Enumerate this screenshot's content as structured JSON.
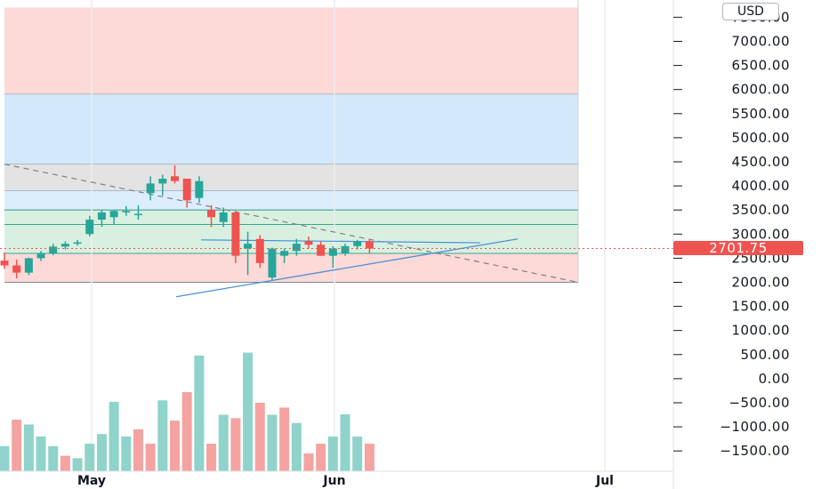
{
  "currency_label": "USD",
  "last_price_label": "2701.75",
  "colors": {
    "up": "#26a69a",
    "down": "#ef5350",
    "vol_up": "#8fd3cb",
    "vol_down": "#f4a3a1",
    "zone_red": "#fdd9d7",
    "zone_blue": "#d2e8fb",
    "zone_lightblue": "#dcedfb",
    "zone_gray": "#e3e3e3",
    "zone_green": "#d9f0e0",
    "trend_line": "#4a90d9",
    "dashed_line": "#808080"
  },
  "chart_data": {
    "type": "candlestick",
    "y_axis": {
      "ticks": [
        7500,
        7000,
        6500,
        6000,
        5500,
        5000,
        4500,
        4000,
        3500,
        3000,
        2500,
        2000,
        1500,
        1000,
        500,
        0,
        -500,
        -1000,
        -1500
      ],
      "tick_labels": [
        "7500.00",
        "7000.00",
        "6500.00",
        "6000.00",
        "5500.00",
        "5000.00",
        "4500.00",
        "4000.00",
        "3500.00",
        "3000.00",
        "2500.00",
        "2000.00",
        "1500.00",
        "1000.00",
        "500.00",
        "0.00",
        "−500.00",
        "−1000.00",
        "−1500.00"
      ],
      "range": [
        -2000,
        7700
      ],
      "unit": "USD"
    },
    "x_axis": {
      "labels": [
        "May",
        "Jun",
        "Jul"
      ]
    },
    "last_price": 2701.75,
    "zones": [
      {
        "from": 5900,
        "to": 7700,
        "color": "zone_red"
      },
      {
        "from": 4450,
        "to": 5900,
        "color": "zone_blue"
      },
      {
        "from": 3900,
        "to": 4450,
        "color": "zone_gray"
      },
      {
        "from": 3500,
        "to": 3900,
        "color": "zone_lightblue"
      },
      {
        "from": 2600,
        "to": 3500,
        "color": "zone_green"
      },
      {
        "from": 2000,
        "to": 2600,
        "color": "zone_red"
      }
    ],
    "candles": [
      {
        "o": 2450,
        "h": 2620,
        "l": 2280,
        "c": 2350
      },
      {
        "o": 2350,
        "h": 2470,
        "l": 2080,
        "c": 2200
      },
      {
        "o": 2200,
        "h": 2510,
        "l": 2150,
        "c": 2500
      },
      {
        "o": 2500,
        "h": 2650,
        "l": 2440,
        "c": 2600
      },
      {
        "o": 2600,
        "h": 2800,
        "l": 2560,
        "c": 2740
      },
      {
        "o": 2740,
        "h": 2850,
        "l": 2680,
        "c": 2800
      },
      {
        "o": 2800,
        "h": 2880,
        "l": 2760,
        "c": 2830
      },
      {
        "o": 3000,
        "h": 3380,
        "l": 2950,
        "c": 3300
      },
      {
        "o": 3300,
        "h": 3500,
        "l": 3150,
        "c": 3450
      },
      {
        "o": 3350,
        "h": 3500,
        "l": 3200,
        "c": 3480
      },
      {
        "o": 3450,
        "h": 3580,
        "l": 3380,
        "c": 3480
      },
      {
        "o": 3400,
        "h": 3600,
        "l": 3300,
        "c": 3420
      },
      {
        "o": 3850,
        "h": 4200,
        "l": 3700,
        "c": 4050
      },
      {
        "o": 4050,
        "h": 4230,
        "l": 3800,
        "c": 4150
      },
      {
        "o": 4200,
        "h": 4430,
        "l": 4050,
        "c": 4100
      },
      {
        "o": 4150,
        "h": 4150,
        "l": 3550,
        "c": 3700
      },
      {
        "o": 3750,
        "h": 4200,
        "l": 3650,
        "c": 4100
      },
      {
        "o": 3500,
        "h": 3600,
        "l": 3150,
        "c": 3350
      },
      {
        "o": 3250,
        "h": 3550,
        "l": 3150,
        "c": 3450
      },
      {
        "o": 3450,
        "h": 3480,
        "l": 2400,
        "c": 2550
      },
      {
        "o": 2700,
        "h": 3050,
        "l": 2150,
        "c": 2800
      },
      {
        "o": 2900,
        "h": 2980,
        "l": 2300,
        "c": 2400
      },
      {
        "o": 2100,
        "h": 2720,
        "l": 2050,
        "c": 2700
      },
      {
        "o": 2550,
        "h": 2700,
        "l": 2400,
        "c": 2650
      },
      {
        "o": 2650,
        "h": 2900,
        "l": 2550,
        "c": 2800
      },
      {
        "o": 2850,
        "h": 2950,
        "l": 2700,
        "c": 2780
      },
      {
        "o": 2780,
        "h": 2850,
        "l": 2550,
        "c": 2550
      },
      {
        "o": 2550,
        "h": 2750,
        "l": 2300,
        "c": 2700
      },
      {
        "o": 2600,
        "h": 2800,
        "l": 2550,
        "c": 2750
      },
      {
        "o": 2750,
        "h": 2880,
        "l": 2680,
        "c": 2850
      },
      {
        "o": 2850,
        "h": 2900,
        "l": 2600,
        "c": 2700
      }
    ],
    "volume": [
      {
        "v": -1400,
        "up": true
      },
      {
        "v": -850,
        "up": false
      },
      {
        "v": -950,
        "up": true
      },
      {
        "v": -1200,
        "up": true
      },
      {
        "v": -1400,
        "up": true
      },
      {
        "v": -1600,
        "up": false
      },
      {
        "v": -1650,
        "up": true
      },
      {
        "v": -1350,
        "up": true
      },
      {
        "v": -1150,
        "up": true
      },
      {
        "v": -480,
        "up": true
      },
      {
        "v": -1200,
        "up": true
      },
      {
        "v": -1050,
        "up": false
      },
      {
        "v": -1350,
        "up": false
      },
      {
        "v": -450,
        "up": true
      },
      {
        "v": -870,
        "up": false
      },
      {
        "v": -280,
        "up": false
      },
      {
        "v": 480,
        "up": true
      },
      {
        "v": -1350,
        "up": false
      },
      {
        "v": -750,
        "up": true
      },
      {
        "v": -820,
        "up": false
      },
      {
        "v": 540,
        "up": true
      },
      {
        "v": -500,
        "up": false
      },
      {
        "v": -750,
        "up": true
      },
      {
        "v": -600,
        "up": false
      },
      {
        "v": -920,
        "up": true
      },
      {
        "v": -1550,
        "up": false
      },
      {
        "v": -1350,
        "up": false
      },
      {
        "v": -1200,
        "up": true
      },
      {
        "v": -740,
        "up": true
      },
      {
        "v": -1200,
        "up": true
      },
      {
        "v": -1350,
        "up": false
      }
    ],
    "drawings": [
      {
        "type": "dashed_trendline",
        "from": [
          -1,
          4450
        ],
        "to": 1950
      },
      {
        "type": "trendline",
        "from_level": 1700,
        "to_level": 2900
      },
      {
        "type": "hline_short",
        "level": 2830
      }
    ]
  }
}
